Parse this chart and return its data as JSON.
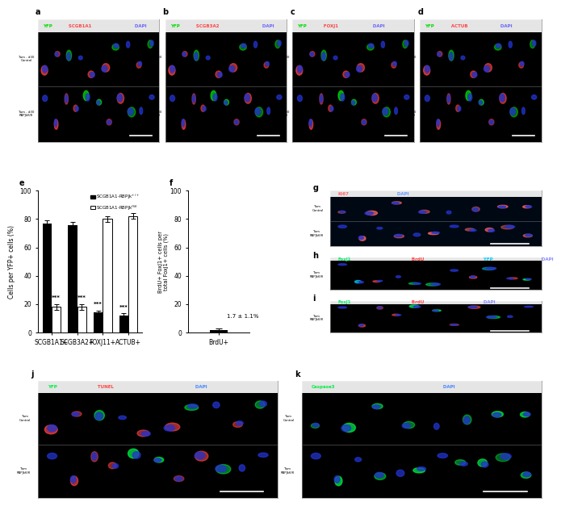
{
  "panel_e": {
    "categories": [
      "SCGB1A1+",
      "SCGB3A2+",
      "FOXJ11+",
      "ACTUB+"
    ],
    "black_values": [
      77,
      76,
      14,
      12
    ],
    "white_values": [
      18,
      18,
      80,
      82
    ],
    "black_errors": [
      2,
      2,
      1.5,
      1.5
    ],
    "white_errors": [
      2,
      2,
      2,
      2
    ],
    "ylabel": "Cells per YFP+ cells (%)",
    "ylim": [
      0,
      100
    ],
    "yticks": [
      0,
      20,
      40,
      60,
      80,
      100
    ],
    "legend_black": "SCGB1A1-RBPJk$^{+/+}$",
    "legend_white": "SCGB1A1-RBPJk$^{fl/fl}$"
  },
  "panel_f": {
    "value": 1.7,
    "error": 1.1,
    "xlabel": "BrdU+",
    "ylabel": "BrdU+ FoxJ1+ cells per\ntotal FoxJ1+ cells (%)",
    "ylim": [
      0,
      100
    ],
    "yticks": [
      0,
      20,
      40,
      60,
      80,
      100
    ],
    "annotation": "1.7 ± 1.1%"
  },
  "image_panels": {
    "a": {
      "title_parts": [
        {
          "text": "YFP",
          "color": "#00dd00"
        },
        {
          "text": " SCGB1A1",
          "color": "#ff4444"
        },
        {
          "text": " DAPI",
          "color": "#6666ff"
        }
      ],
      "side_labels": [
        "Tam - d30\nControl",
        "Tam - d30\nRBPJkfl/fl"
      ],
      "n_rows": 2,
      "bg_color": "#000000"
    },
    "b": {
      "title_parts": [
        {
          "text": "YFP",
          "color": "#00dd00"
        },
        {
          "text": " SCGB3A2",
          "color": "#ff4444"
        },
        {
          "text": " DAPI",
          "color": "#6666ff"
        }
      ],
      "side_labels": [
        "Tam - d30\nControl",
        "Tam - d30\nRBPJkfl/fl"
      ],
      "n_rows": 2,
      "bg_color": "#000000"
    },
    "c": {
      "title_parts": [
        {
          "text": "YFP",
          "color": "#00dd00"
        },
        {
          "text": " FOXJ1",
          "color": "#ff4444"
        },
        {
          "text": " DAPI",
          "color": "#6666ff"
        }
      ],
      "side_labels": [
        "Tam - d30\nControl",
        "Tam - d30\nRBPJkfl/fl"
      ],
      "n_rows": 2,
      "bg_color": "#000000"
    },
    "d": {
      "title_parts": [
        {
          "text": "YFP",
          "color": "#00dd00"
        },
        {
          "text": " ACTUB",
          "color": "#ff4444"
        },
        {
          "text": " DAPI",
          "color": "#6666ff"
        }
      ],
      "side_labels": [
        "Tam - d30\nControl",
        "Tam - d30\nRBPJkfl/fl"
      ],
      "n_rows": 2,
      "bg_color": "#000000"
    },
    "g": {
      "title_parts": [
        {
          "text": "Ki67",
          "color": "#ff6666"
        },
        {
          "text": " DAPI",
          "color": "#6699ff"
        }
      ],
      "side_labels": [
        "Tam\nControl",
        "Tam\nRBPJkfl/fl"
      ],
      "n_rows": 2,
      "bg_color": "#000814"
    },
    "h": {
      "title_parts": [
        {
          "text": "FoxJ1",
          "color": "#00ee66"
        },
        {
          "text": " BrdU",
          "color": "#ff4444"
        },
        {
          "text": " YFP",
          "color": "#00ccff"
        },
        {
          "text": " DAPI",
          "color": "#8888ff"
        }
      ],
      "side_labels": [
        "Tam\nRBPJkfl/fl"
      ],
      "n_rows": 1,
      "bg_color": "#000000"
    },
    "i": {
      "title_parts": [
        {
          "text": "FoxJ1",
          "color": "#00ee66"
        },
        {
          "text": " BrdU",
          "color": "#ff4444"
        },
        {
          "text": " DAPI",
          "color": "#8888ff"
        }
      ],
      "side_labels": [
        "Tam\nRBPJkfl/fl"
      ],
      "n_rows": 1,
      "bg_color": "#000000"
    },
    "j": {
      "title_parts": [
        {
          "text": "YFP",
          "color": "#00ee44"
        },
        {
          "text": " TUNEL",
          "color": "#ff4444"
        },
        {
          "text": " DAPI",
          "color": "#4488ff"
        }
      ],
      "side_labels": [
        "Tam\nControl",
        "Tam\nRBPJkfl/fl"
      ],
      "n_rows": 2,
      "bg_color": "#000000"
    },
    "k": {
      "title_parts": [
        {
          "text": "Caspase3",
          "color": "#00ee44"
        },
        {
          "text": " DAPI",
          "color": "#4488ff"
        }
      ],
      "side_labels": [
        "Tam\nControl",
        "Tam\nRBPJkfl/fl"
      ],
      "n_rows": 2,
      "bg_color": "#000000"
    }
  },
  "bg_color": "#ffffff"
}
